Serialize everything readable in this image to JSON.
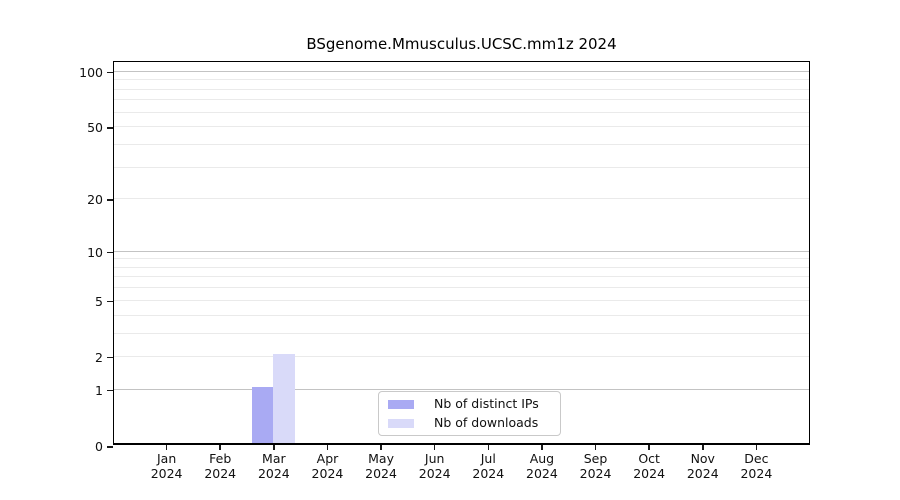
{
  "chart_data": {
    "type": "bar",
    "title": "BSgenome.Mmusculus.UCSC.mm1z 2024",
    "categories": [
      "Jan 2024",
      "Feb 2024",
      "Mar 2024",
      "Apr 2024",
      "May 2024",
      "Jun 2024",
      "Jul 2024",
      "Aug 2024",
      "Sep 2024",
      "Oct 2024",
      "Nov 2024",
      "Dec 2024"
    ],
    "x_tick_months": [
      "Jan",
      "Feb",
      "Mar",
      "Apr",
      "May",
      "Jun",
      "Jul",
      "Aug",
      "Sep",
      "Oct",
      "Nov",
      "Dec"
    ],
    "x_tick_year": "2024",
    "series": [
      {
        "name": "Nb of distinct IPs",
        "color": "#a9aaf3",
        "values": [
          0,
          0,
          1,
          0,
          0,
          0,
          0,
          0,
          0,
          0,
          0,
          0
        ]
      },
      {
        "name": "Nb of downloads",
        "color": "#d9daf9",
        "values": [
          0,
          0,
          2,
          0,
          0,
          0,
          0,
          0,
          0,
          0,
          0,
          0
        ]
      }
    ],
    "y_scale": "log1p",
    "ylim": [
      0,
      113
    ],
    "xlabel": "",
    "ylabel": "",
    "y_tick_values": [
      0,
      1,
      2,
      5,
      10,
      20,
      50,
      100
    ],
    "gridlines": {
      "major_values": [
        1,
        10,
        100
      ],
      "minor_values": [
        2,
        3,
        4,
        5,
        6,
        7,
        8,
        9,
        20,
        30,
        40,
        50,
        60,
        70,
        80,
        90
      ],
      "major_color": "#c3c3c3",
      "minor_color": "#eaeaea"
    },
    "legend": {
      "position": "lower center"
    }
  },
  "styles": {
    "background": "#ffffff",
    "spine_color": "#000000",
    "tick_color": "#1a1a1a",
    "legend_border": "#c9c9c9"
  }
}
